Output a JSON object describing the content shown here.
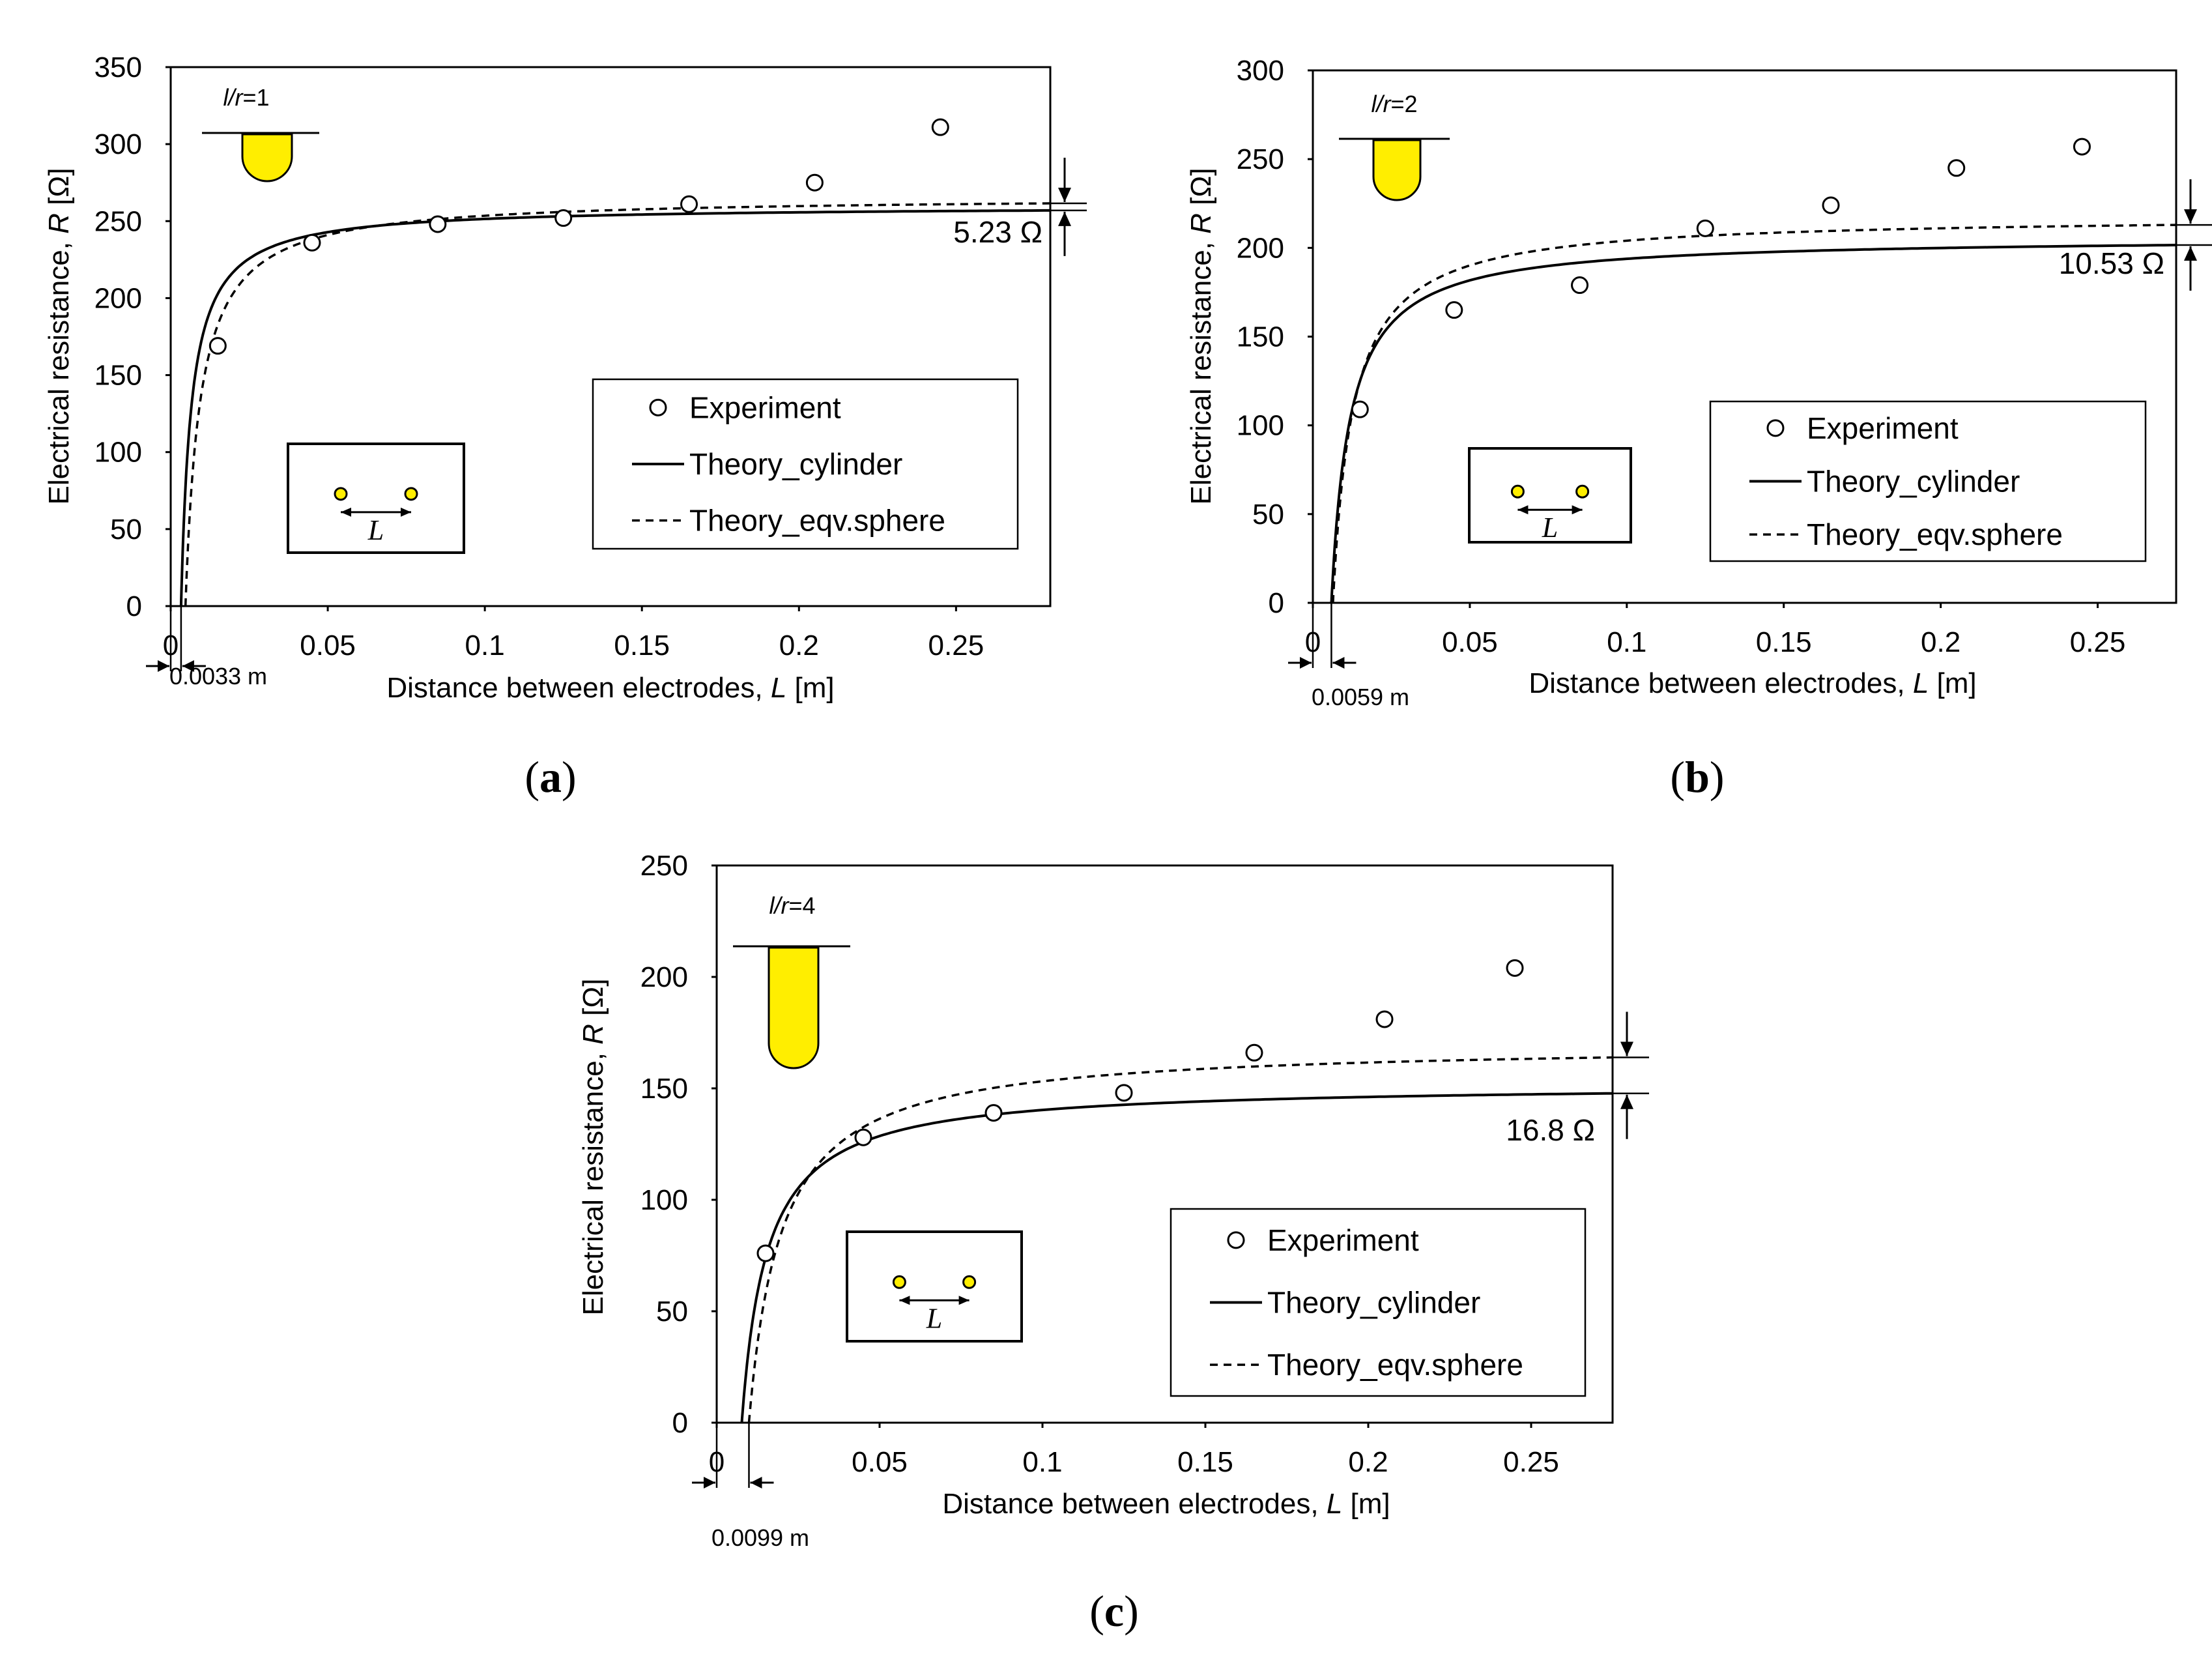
{
  "chart_data": [
    {
      "id": "a",
      "type": "scatter",
      "caption": "a",
      "xlabel": "Distance between electrodes, ",
      "xlabel_var": "L",
      "xlabel_unit": " [m]",
      "ylabel": "Electrical resistance, ",
      "ylabel_var": "R",
      "ylabel_unit": " [Ω]",
      "xlim": [
        0,
        0.28
      ],
      "ylim": [
        0,
        350
      ],
      "xticks": [
        0,
        0.05,
        0.1,
        0.15,
        0.2,
        0.25
      ],
      "xtick_labels": [
        "0",
        "0.05",
        "0.1",
        "0.15",
        "0.2",
        "0.25"
      ],
      "yticks": [
        0,
        50,
        100,
        150,
        200,
        250,
        300,
        350
      ],
      "ytick_labels": [
        "0",
        "50",
        "100",
        "150",
        "200",
        "250",
        "300",
        "350"
      ],
      "ratio_label": {
        "var": "l/r",
        "value": "=1"
      },
      "electrode_label": "L",
      "legend": [
        "Experiment",
        "Theory_cylinder",
        "Theory_eqv.sphere"
      ],
      "experiment": {
        "x": [
          0.015,
          0.045,
          0.085,
          0.125,
          0.165,
          0.205,
          0.245
        ],
        "y": [
          169,
          236,
          248,
          252,
          261,
          275,
          311
        ]
      },
      "theory": {
        "a": 0.0033,
        "cyl_inf": 260,
        "sph_inf": 266,
        "d": 0.0047
      },
      "offset_label": "0.0033 m",
      "offset_value": 0.0033,
      "diff_label": "5.23 Ω",
      "diff_value": 5.23
    },
    {
      "id": "b",
      "type": "scatter",
      "caption": "b",
      "xlabel": "Distance between electrodes, ",
      "xlabel_var": "L",
      "xlabel_unit": " [m]",
      "ylabel": "Electrical resistance, ",
      "ylabel_var": "R",
      "ylabel_unit": " [Ω]",
      "xlim": [
        0,
        0.275
      ],
      "ylim": [
        0,
        300
      ],
      "xticks": [
        0,
        0.05,
        0.1,
        0.15,
        0.2,
        0.25
      ],
      "xtick_labels": [
        "0",
        "0.05",
        "0.1",
        "0.15",
        "0.2",
        "0.25"
      ],
      "yticks": [
        0,
        50,
        100,
        150,
        200,
        250,
        300
      ],
      "ytick_labels": [
        "0",
        "50",
        "100",
        "150",
        "200",
        "250",
        "300"
      ],
      "ratio_label": {
        "var": "l/r",
        "value": "=2"
      },
      "electrode_label": "L",
      "legend": [
        "Experiment",
        "Theory_cylinder",
        "Theory_eqv.sphere"
      ],
      "experiment": {
        "x": [
          0.015,
          0.045,
          0.085,
          0.125,
          0.165,
          0.205,
          0.245
        ],
        "y": [
          109,
          165,
          179,
          211,
          224,
          245,
          257
        ]
      },
      "theory": {
        "a": 0.0059,
        "cyl_inf": 206,
        "sph_inf": 218,
        "d": 0.0064
      },
      "offset_label": "0.0059 m",
      "offset_value": 0.0059,
      "diff_label": "10.53 Ω",
      "diff_value": 10.53
    },
    {
      "id": "c",
      "type": "scatter",
      "caption": "c",
      "xlabel": "Distance between electrodes, ",
      "xlabel_var": "L",
      "xlabel_unit": " [m]",
      "ylabel": "Electrical resistance, ",
      "ylabel_var": "R",
      "ylabel_unit": " [Ω]",
      "xlim": [
        0,
        0.275
      ],
      "ylim": [
        0,
        250
      ],
      "xticks": [
        0,
        0.05,
        0.1,
        0.15,
        0.2,
        0.25
      ],
      "xtick_labels": [
        "0",
        "0.05",
        "0.1",
        "0.15",
        "0.2",
        "0.25"
      ],
      "yticks": [
        0,
        50,
        100,
        150,
        200,
        250
      ],
      "ytick_labels": [
        "0",
        "50",
        "100",
        "150",
        "200",
        "250"
      ],
      "ratio_label": {
        "var": "l/r",
        "value": "=4"
      },
      "electrode_label": "L",
      "legend": [
        "Experiment",
        "Theory_cylinder",
        "Theory_eqv.sphere"
      ],
      "experiment": {
        "x": [
          0.015,
          0.045,
          0.085,
          0.125,
          0.165,
          0.205,
          0.245
        ],
        "y": [
          76,
          128,
          139,
          148,
          166,
          181,
          204
        ]
      },
      "theory": {
        "a": 0.0077,
        "cyl_inf": 152,
        "sph_inf": 170,
        "d": 0.0099
      },
      "offset_label": "0.0099 m",
      "offset_value": 0.0099,
      "diff_label": "16.8 Ω",
      "diff_value": 16.8
    }
  ]
}
